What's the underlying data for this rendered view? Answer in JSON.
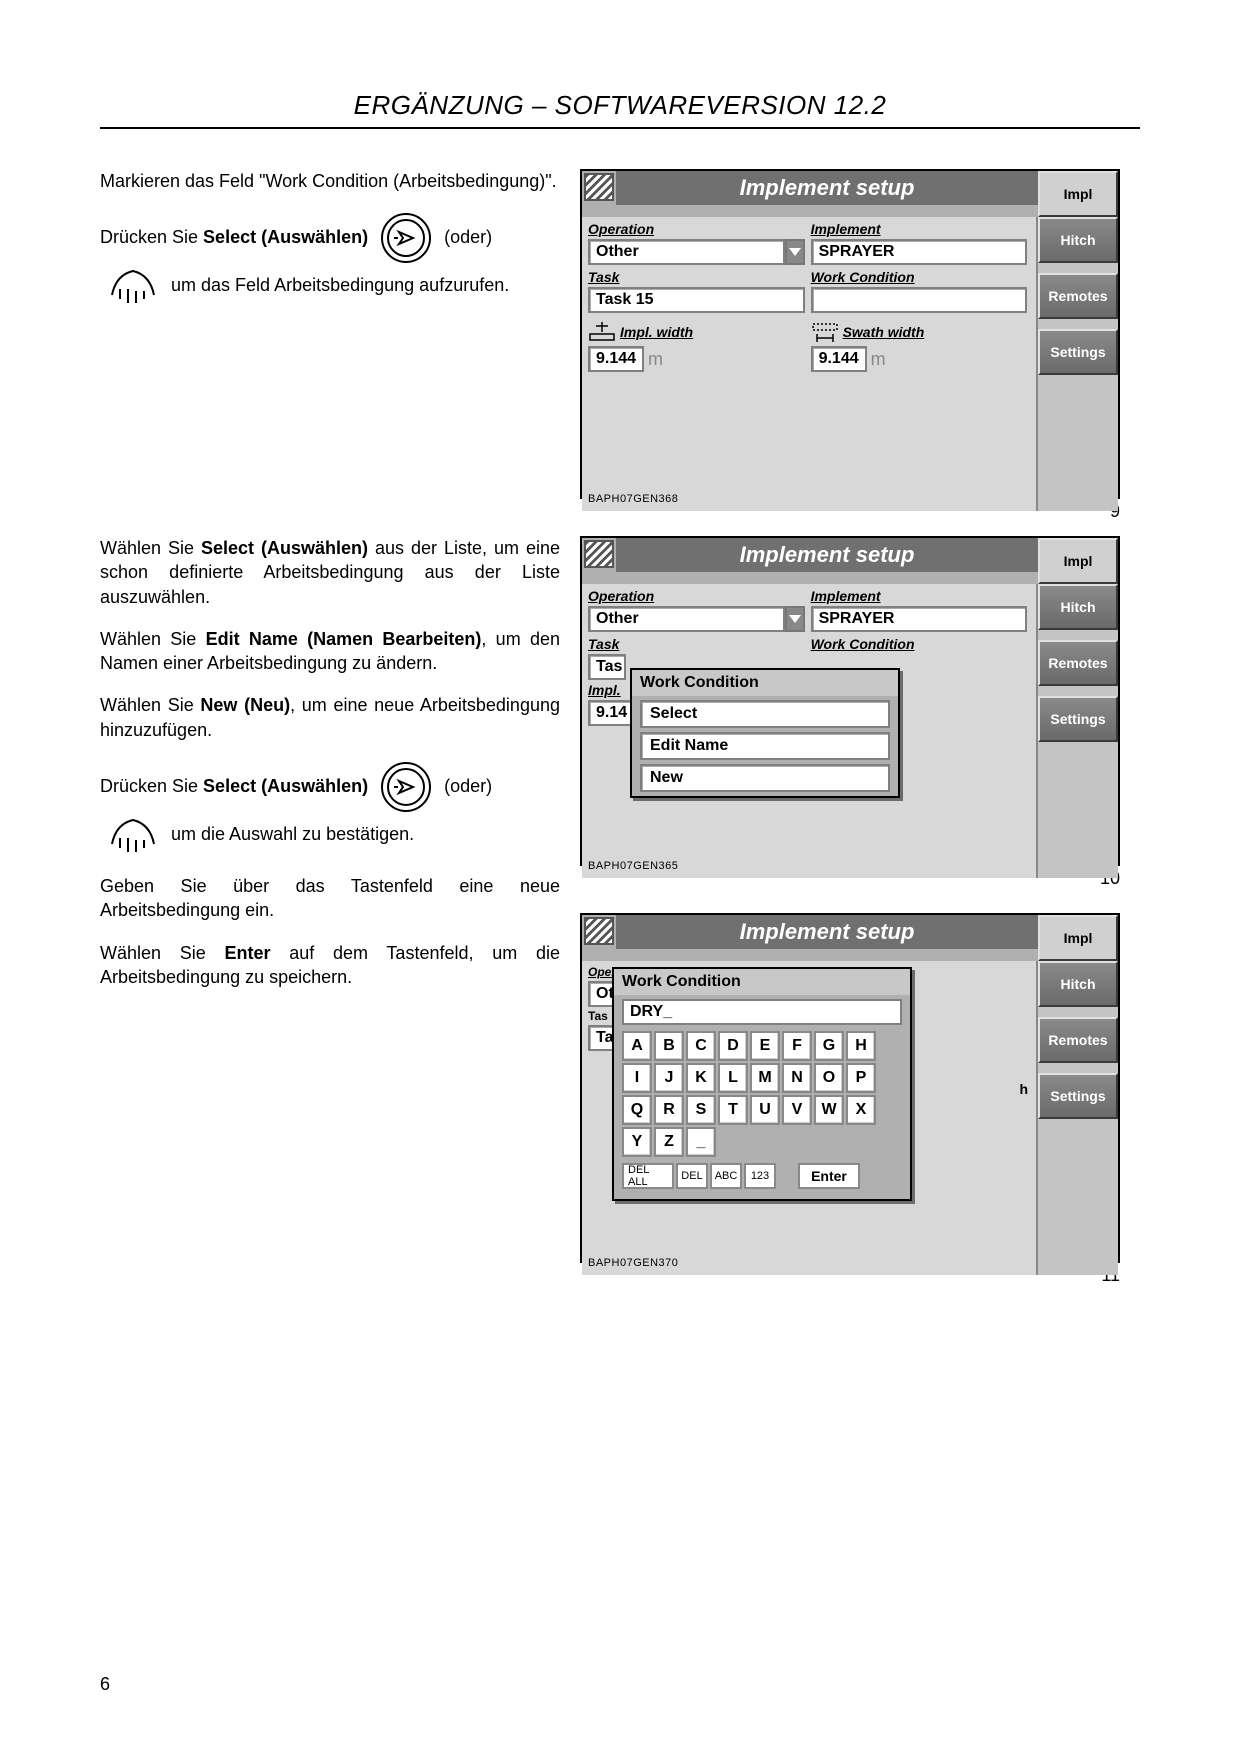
{
  "header": {
    "title": "ERGÄNZUNG – SOFTWAREVERSION 12.2"
  },
  "page_number": "6",
  "text": {
    "p1": "Markieren das Feld \"Work Condition (Arbeitsbedingung)\".",
    "p2a": "Drücken Sie ",
    "p2b": "Select (Auswählen)",
    "p2c": " (oder)",
    "p2d": " um das Feld Arbeitsbedingung aufzurufen.",
    "p3a": "Wählen Sie ",
    "p3b": "Select (Auswählen)",
    "p3c": " aus der Liste, um eine schon definierte Arbeitsbedingung aus der Liste auszuwählen.",
    "p4a": "Wählen Sie ",
    "p4b": "Edit Name (Namen Bearbeiten)",
    "p4c": ", um den Namen einer Arbeitsbedingung zu ändern.",
    "p5a": "Wählen Sie ",
    "p5b": "New (Neu)",
    "p5c": ", um eine neue Arbeitsbedingung hinzuzufügen.",
    "p6a": "Drücken Sie ",
    "p6b": "Select (Auswählen)",
    "p6c": " (oder)",
    "p6d": " um die Auswahl zu bestätigen.",
    "p7": "Geben Sie über das Tastenfeld eine neue Arbeitsbedingung ein.",
    "p8a": "Wählen Sie ",
    "p8b": "Enter",
    "p8c": " auf dem Tastenfeld, um die Arbeitsbedingung zu speichern."
  },
  "sidebar_tabs": {
    "t0": "Impl",
    "t1": "Hitch",
    "t2": "Remotes",
    "t3": "Settings"
  },
  "shot_caption": {
    "c1": "9",
    "c2": "10",
    "c3": "11"
  },
  "shot1": {
    "title": "Implement setup",
    "operation_label": "Operation",
    "operation_value": "Other",
    "implement_label": "Implement",
    "implement_value": "SPRAYER",
    "task_label": "Task",
    "task_value": "Task 15",
    "workcond_label": "Work Condition",
    "implwidth_label": "Impl. width",
    "implwidth_value": "9.144",
    "implwidth_unit": "m",
    "swath_label": "Swath width",
    "swath_value": "9.144",
    "swath_unit": "m",
    "ref": "BAPH07GEN368"
  },
  "shot2": {
    "title": "Implement setup",
    "operation_label": "Operation",
    "operation_value": "Other",
    "implement_label": "Implement",
    "implement_value": "SPRAYER",
    "task_label": "Task",
    "workcond_label": "Work Condition",
    "task_trunc": "Tas",
    "impl_trunc": "Impl.",
    "val_trunc": "9.14",
    "popup_title": "Work Condition",
    "popup_items": {
      "i0": "Select",
      "i1": "Edit Name",
      "i2": "New"
    },
    "ref": "BAPH07GEN365"
  },
  "shot3": {
    "title": "Implement setup",
    "op_trunc": "Ot",
    "tas_trunc": "Tas",
    "ta_trunc": "Ta",
    "popup_title": "Work Condition",
    "entry_value": "DRY_",
    "swath_h": "h",
    "keys_r1": [
      "A",
      "B",
      "C",
      "D",
      "E",
      "F",
      "G",
      "H"
    ],
    "keys_r2": [
      "I",
      "J",
      "K",
      "L",
      "M",
      "N",
      "O",
      "P"
    ],
    "keys_r3": [
      "Q",
      "R",
      "S",
      "T",
      "U",
      "V",
      "W",
      "X"
    ],
    "keys_r4": [
      "Y",
      "Z"
    ],
    "actions": {
      "delall": "DEL ALL",
      "del": "DEL",
      "abc": "ABC",
      "n123": "123",
      "enter": "Enter"
    },
    "ref": "BAPH07GEN370"
  }
}
